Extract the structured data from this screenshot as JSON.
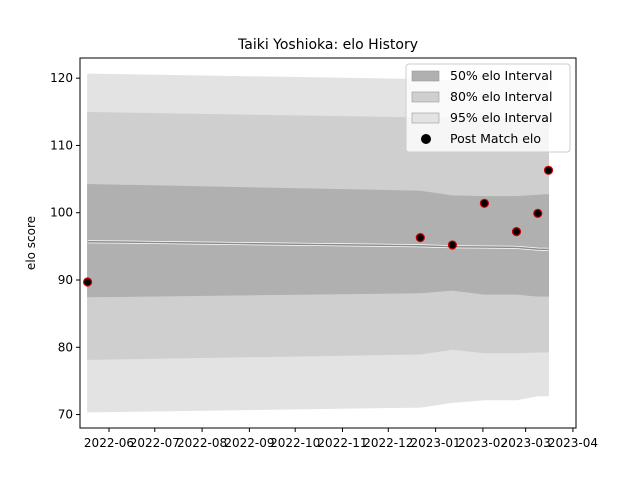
{
  "chart_data": {
    "type": "area",
    "title": "Taiki Yoshioka: elo History",
    "xlabel": "",
    "ylabel": "elo score",
    "x_domain": [
      "2022-05-13",
      "2023-04-03"
    ],
    "ylim": [
      68.0,
      123.0
    ],
    "x_tick_labels": [
      {
        "date": "2022-06-01",
        "label": "2022-06"
      },
      {
        "date": "2022-07-01",
        "label": "2022-07"
      },
      {
        "date": "2022-08-01",
        "label": "2022-08"
      },
      {
        "date": "2022-09-01",
        "label": "2022-09"
      },
      {
        "date": "2022-10-01",
        "label": "2022-10"
      },
      {
        "date": "2022-11-01",
        "label": "2022-11"
      },
      {
        "date": "2022-12-01",
        "label": "2022-12"
      },
      {
        "date": "2023-01-01",
        "label": "2023-01"
      },
      {
        "date": "2023-02-01",
        "label": "2023-02"
      },
      {
        "date": "2023-03-01",
        "label": "2023-03"
      },
      {
        "date": "2023-04-01",
        "label": "2023-04"
      }
    ],
    "y_ticks": [
      70,
      80,
      90,
      100,
      110,
      120
    ],
    "grid": false,
    "legend_position": "top-right",
    "x": [
      "2022-05-18",
      "2022-12-22",
      "2023-01-12",
      "2023-02-02",
      "2023-02-23",
      "2023-03-09",
      "2023-03-16"
    ],
    "mean": [
      95.7,
      95.1,
      94.95,
      94.9,
      94.85,
      94.6,
      94.55
    ],
    "series": [
      {
        "name": "50% elo Interval",
        "upper": [
          104.2,
          103.2,
          102.5,
          102.4,
          102.4,
          102.6,
          102.7
        ],
        "lower": [
          87.5,
          88.1,
          88.5,
          87.9,
          87.9,
          87.6,
          87.6
        ],
        "color": "#b0b0b0"
      },
      {
        "name": "80% elo Interval",
        "upper": [
          114.9,
          114.1,
          114.0,
          114.0,
          114.0,
          114.0,
          114.0
        ],
        "lower": [
          78.2,
          79.0,
          79.7,
          79.2,
          79.2,
          79.3,
          79.3
        ],
        "color": "#cfcfcf"
      },
      {
        "name": "95% elo Interval",
        "upper": [
          120.6,
          119.8,
          119.6,
          119.6,
          119.6,
          119.6,
          119.6
        ],
        "lower": [
          70.4,
          71.1,
          71.8,
          72.2,
          72.2,
          72.8,
          72.8
        ],
        "color": "#e3e3e3"
      }
    ],
    "points": {
      "name": "Post Match elo",
      "x": [
        "2022-05-18",
        "2022-12-22",
        "2023-01-12",
        "2023-02-02",
        "2023-02-23",
        "2023-03-09",
        "2023-03-16"
      ],
      "y": [
        89.7,
        96.3,
        95.2,
        101.4,
        97.2,
        99.9,
        106.3
      ],
      "fill": "#000000",
      "edge": "#cc0000"
    }
  }
}
